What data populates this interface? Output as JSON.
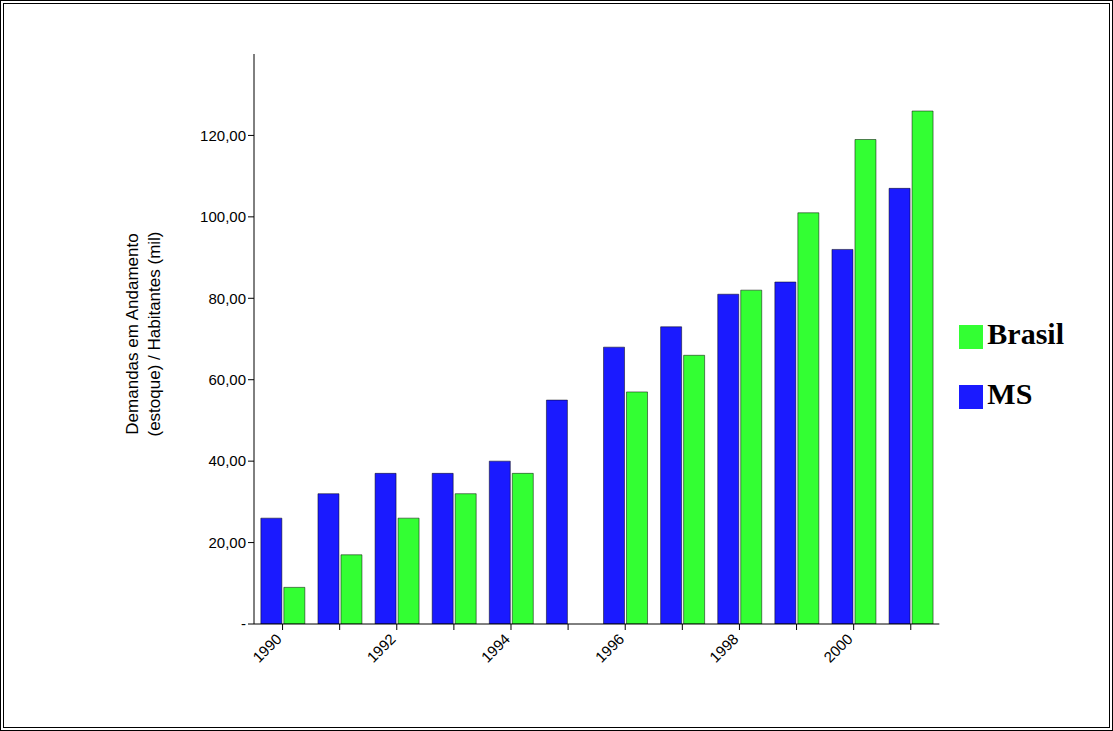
{
  "chart_data": {
    "type": "bar",
    "y_label": [
      "Demandas em Andamento",
      "(estoque) / Habitantes (mil)"
    ],
    "categories": [
      "1990",
      null,
      "1992",
      null,
      "1994",
      null,
      "1996",
      null,
      "1998",
      null,
      "2000",
      null
    ],
    "series": [
      {
        "name": "MS",
        "color": "#1a1aff",
        "values": [
          26,
          32,
          37,
          37,
          40,
          55,
          68,
          73,
          81,
          84,
          92,
          107
        ]
      },
      {
        "name": "Brasil",
        "color": "#33ff33",
        "values": [
          9,
          17,
          26,
          32,
          37,
          null,
          57,
          66,
          82,
          101,
          119,
          126
        ]
      }
    ],
    "ylim": [
      0,
      140
    ],
    "yticks": [
      {
        "value": 0,
        "label": "-"
      },
      {
        "value": 20,
        "label": "20,00"
      },
      {
        "value": 40,
        "label": "40,00"
      },
      {
        "value": 60,
        "label": "60,00"
      },
      {
        "value": 80,
        "label": "80,00"
      },
      {
        "value": 100,
        "label": "100,00"
      },
      {
        "value": 120,
        "label": "120,00"
      }
    ],
    "grid": false,
    "legend": "right"
  }
}
